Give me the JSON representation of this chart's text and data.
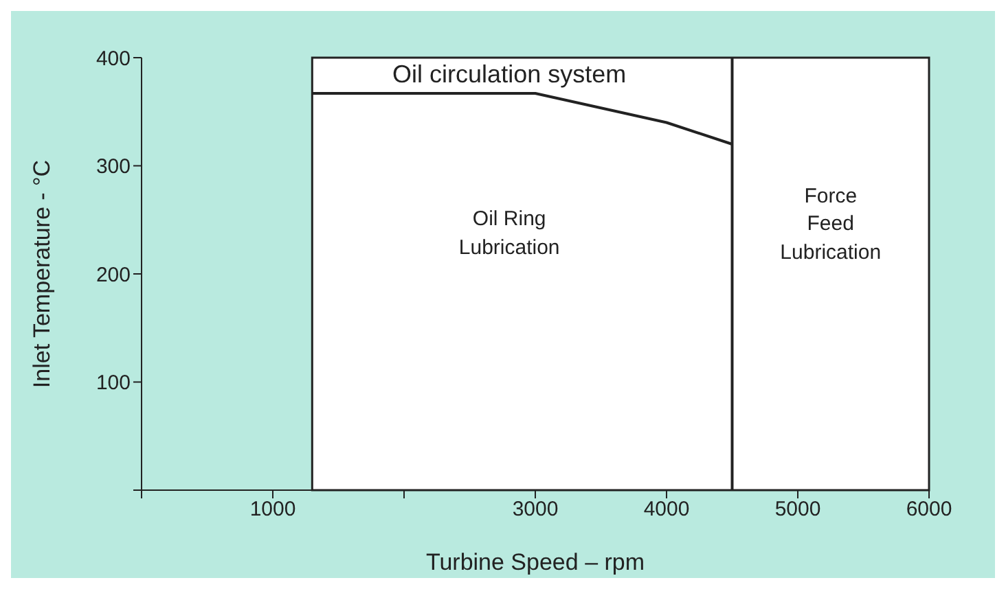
{
  "chart_data": {
    "type": "line",
    "xlabel": "Turbine Speed – rpm",
    "ylabel": "Inlet Temperature - °C",
    "xlim": [
      0,
      6000
    ],
    "ylim": [
      0,
      400
    ],
    "xticks": [
      {
        "value": 0,
        "label": null
      },
      1000,
      {
        "value": 2000,
        "label": null
      },
      3000,
      4000,
      5000,
      6000
    ],
    "yticks": [
      {
        "value": 0,
        "label": null
      },
      100,
      200,
      300,
      400
    ],
    "series": [
      {
        "color": "#222222",
        "x": [
          1300,
          3000,
          4000,
          4500
        ],
        "values": [
          367,
          367,
          340,
          320
        ]
      }
    ],
    "ref_lines": [
      {
        "axis": "x",
        "value": 4500,
        "color": "#222222"
      }
    ],
    "bands": [
      {
        "axis": "x",
        "from": 1300,
        "to": 6000,
        "color": "#ffffff"
      }
    ],
    "annotations": [
      "Oil circulation system",
      "Oil Ring\nLubrication",
      "Force\nFeed\nLubrication"
    ],
    "grid": false,
    "legend": false,
    "marker": "none",
    "line_style": "solid"
  }
}
